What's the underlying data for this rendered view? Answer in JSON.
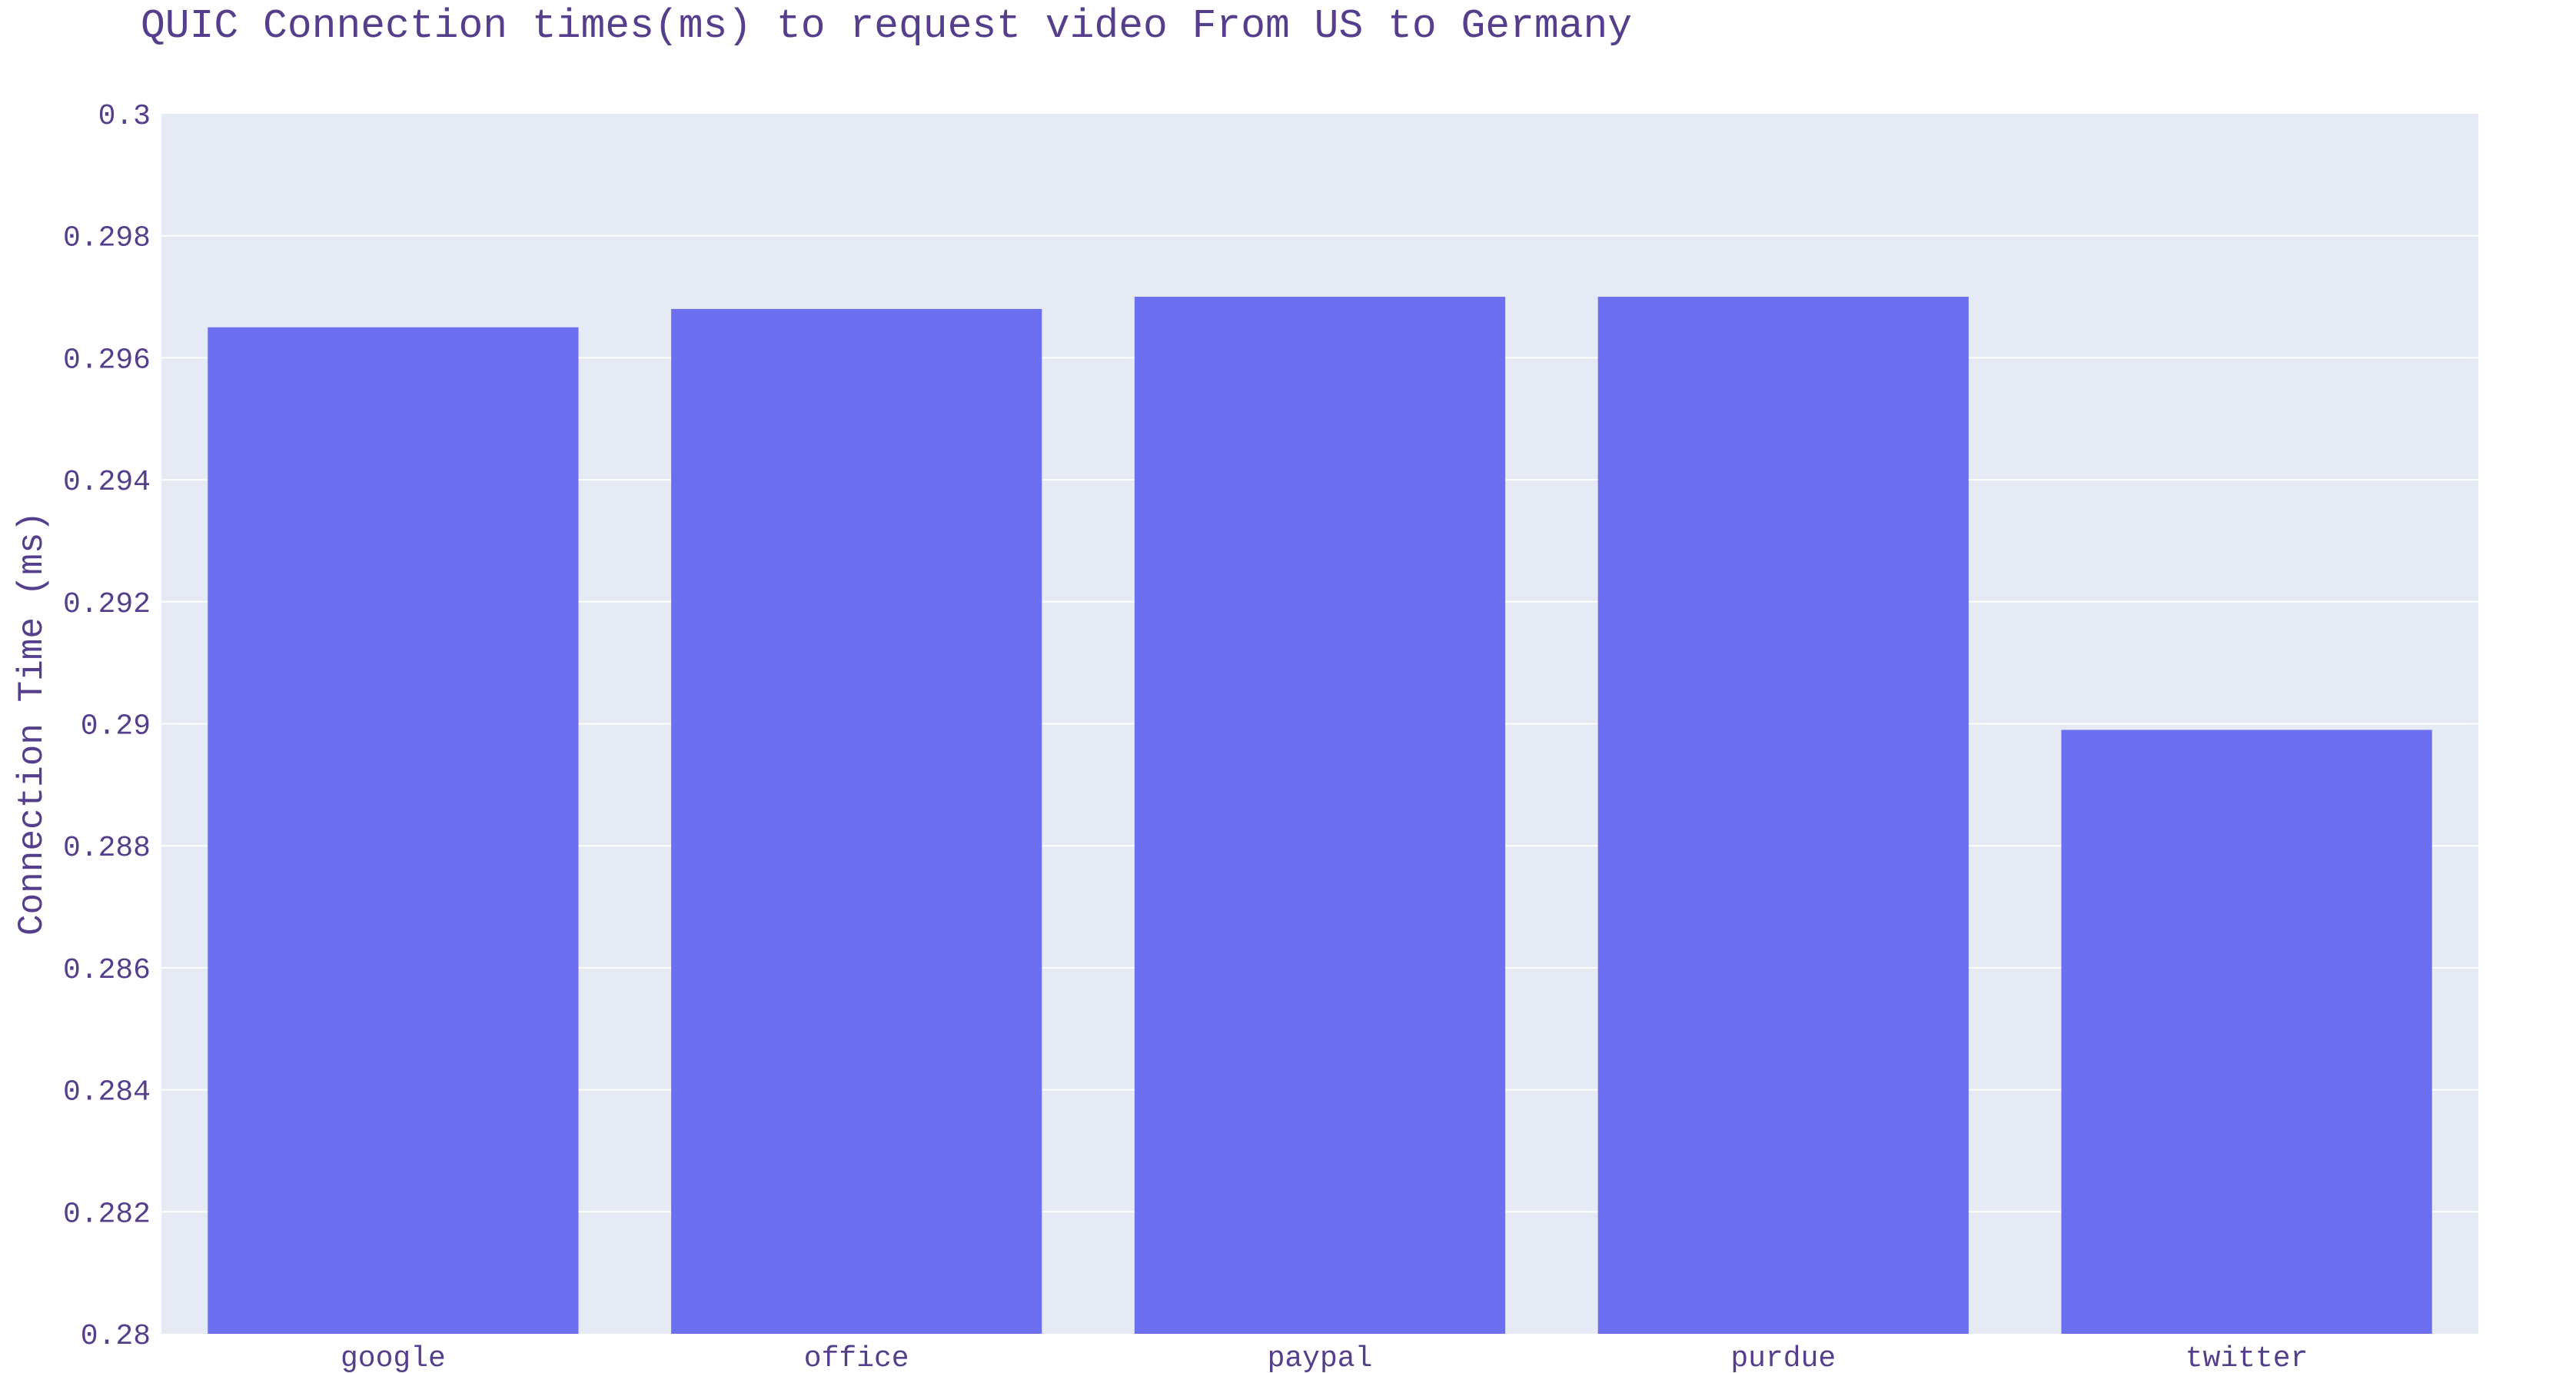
{
  "chart_data": {
    "type": "bar",
    "title": "QUIC Connection times(ms) to request video From US to Germany",
    "xlabel": "",
    "ylabel": "Connection Time (ms)",
    "categories": [
      "google",
      "office",
      "paypal",
      "purdue",
      "twitter"
    ],
    "values": [
      0.2965,
      0.2968,
      0.297,
      0.297,
      0.2899
    ],
    "ylim": [
      0.28,
      0.3
    ],
    "yticks": [
      0.28,
      0.282,
      0.284,
      0.286,
      0.288,
      0.29,
      0.292,
      0.294,
      0.296,
      0.298,
      0.3
    ],
    "ytick_labels": [
      "0.28",
      "0.282",
      "0.284",
      "0.286",
      "0.288",
      "0.29",
      "0.292",
      "0.294",
      "0.296",
      "0.298",
      "0.3"
    ],
    "grid": true,
    "legend": "none",
    "colors": {
      "bar": "#6c70f0",
      "plot_background": "#e6eaf4",
      "text": "#553f8c",
      "grid": "#ffffff"
    }
  }
}
